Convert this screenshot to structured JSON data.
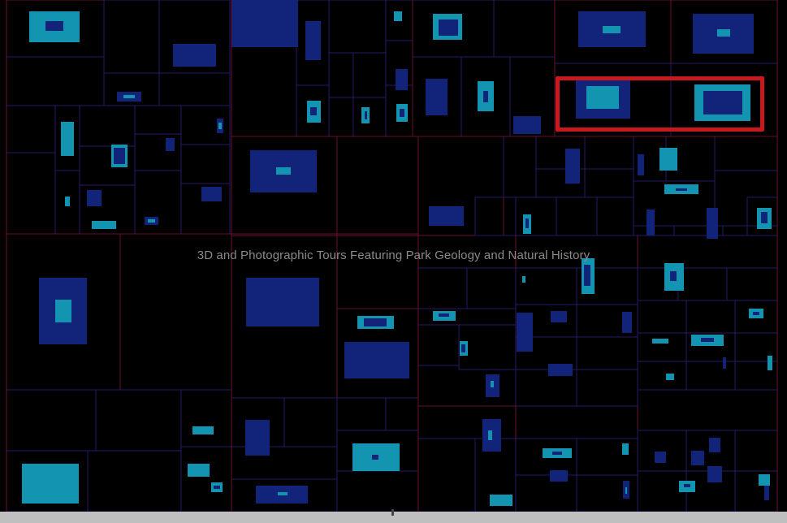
{
  "overlay_title": "3D and Photographic Tours Featuring Park Geology and Natural History",
  "colors": {
    "background": "#000000",
    "line_major": "#6a1030",
    "line_minor": "#2a1866",
    "block_navy": "#12237a",
    "block_cyan": "#1394b0",
    "highlight": "#c8191e",
    "title_text": "#8a8a8a"
  }
}
